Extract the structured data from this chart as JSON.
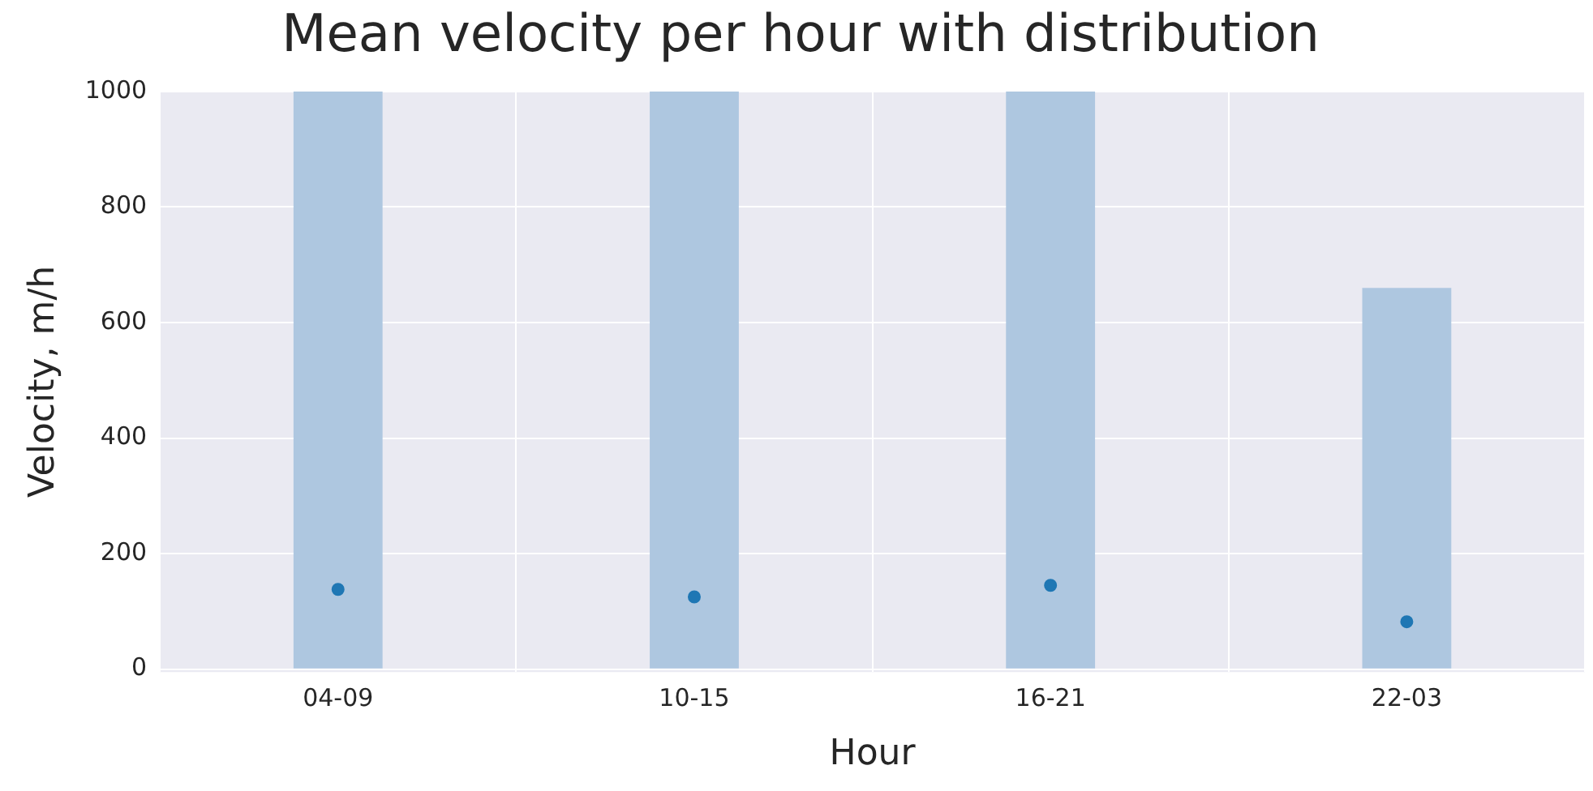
{
  "chart_data": {
    "type": "bar",
    "title": "Mean velocity per hour with distribution",
    "xlabel": "Hour",
    "ylabel": "Velocity, m/h",
    "categories": [
      "04-09",
      "10-15",
      "16-21",
      "22-03"
    ],
    "series": [
      {
        "type": "bar",
        "color": "#aec7e0",
        "base": [
          0,
          0,
          0,
          0
        ],
        "values": [
          1000,
          1000,
          1000,
          660
        ]
      },
      {
        "type": "scatter",
        "color": "#1f77b4",
        "values": [
          138,
          125,
          145,
          82
        ]
      }
    ],
    "ylim": [
      -5,
      1000
    ],
    "yticks": [
      0,
      200,
      400,
      600,
      800,
      1000
    ],
    "grid": true,
    "legend": false,
    "marker": "circle"
  }
}
